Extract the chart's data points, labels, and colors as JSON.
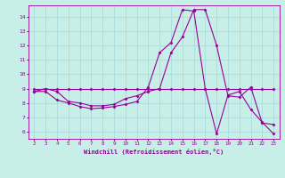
{
  "x": [
    2,
    3,
    4,
    5,
    6,
    7,
    8,
    9,
    10,
    11,
    12,
    13,
    14,
    15,
    16,
    17,
    18,
    19,
    20,
    21,
    22,
    23
  ],
  "y_line1": [
    9,
    9,
    9,
    9,
    9,
    9,
    9,
    9,
    9,
    9,
    9,
    9,
    9,
    9,
    9,
    9,
    9,
    9,
    9,
    9,
    9,
    9
  ],
  "y_line2": [
    8.8,
    9.0,
    8.8,
    8.1,
    8.0,
    7.8,
    7.8,
    7.9,
    8.3,
    8.5,
    8.8,
    9.0,
    11.5,
    12.6,
    14.5,
    14.5,
    12.0,
    8.5,
    8.4,
    9.1,
    6.6,
    6.5
  ],
  "y_line3": [
    8.8,
    8.8,
    8.2,
    8.0,
    7.75,
    7.6,
    7.65,
    7.75,
    7.9,
    8.1,
    9.1,
    11.5,
    12.2,
    14.5,
    14.4,
    9.0,
    5.85,
    8.55,
    8.8,
    7.55,
    6.65,
    5.85
  ],
  "bg_color": "#c8eee8",
  "grid_color": "#aadddd",
  "xlabel": "Windchill (Refroidissement éolien,°C)",
  "ylabel_ticks": [
    6,
    7,
    8,
    9,
    10,
    11,
    12,
    13,
    14
  ],
  "xlim": [
    1.5,
    23.5
  ],
  "ylim": [
    5.5,
    14.8
  ],
  "line_color": "#990099",
  "marker": "D",
  "markersize": 1.5,
  "linewidth": 0.8
}
